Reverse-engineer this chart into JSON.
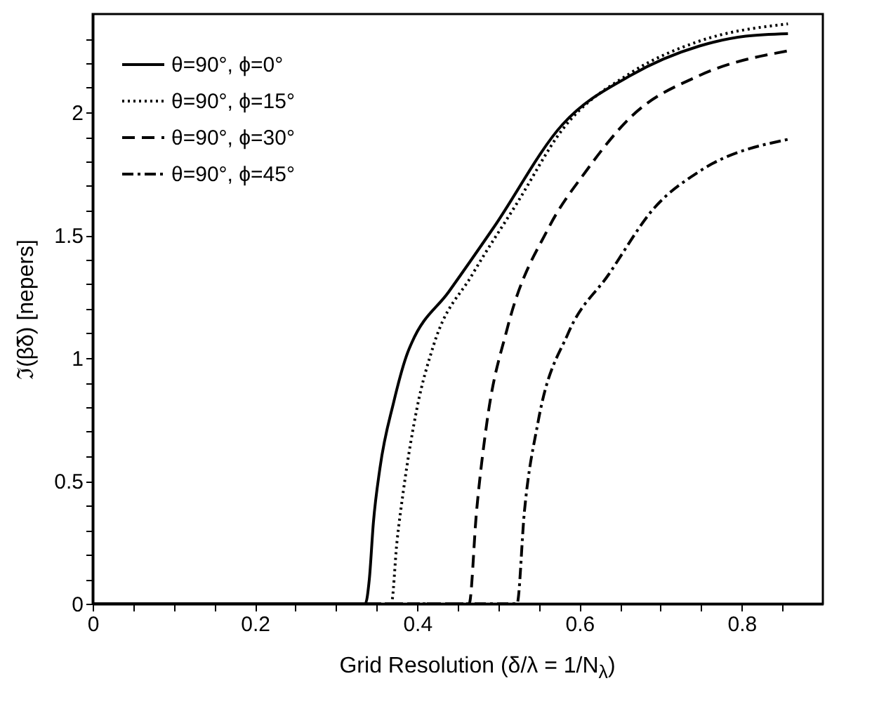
{
  "chart_data": {
    "type": "line",
    "xlabel": "Grid Resolution (δ/λ = 1/N$_{λ}$)",
    "ylabel": "ℑ(β̃δ) [nepers]",
    "xlim": [
      0,
      0.9
    ],
    "ylim": [
      0,
      2.4
    ],
    "xticks": [
      0,
      {
        "value": 0.05,
        "label": null
      },
      {
        "value": 0.1,
        "label": null
      },
      {
        "value": 0.15,
        "label": null
      },
      "0.2",
      {
        "value": 0.25,
        "label": null
      },
      {
        "value": 0.3,
        "label": null
      },
      {
        "value": 0.35,
        "label": null
      },
      0.4,
      {
        "value": 0.45,
        "label": null
      },
      {
        "value": 0.5,
        "label": null
      },
      {
        "value": 0.55,
        "label": null
      },
      0.6,
      {
        "value": 0.65,
        "label": null
      },
      {
        "value": 0.7,
        "label": null
      },
      {
        "value": 0.75,
        "label": null
      },
      0.8,
      {
        "value": 0.85,
        "label": null
      }
    ],
    "yticks": [
      0,
      {
        "value": 0.1,
        "label": null
      },
      {
        "value": 0.2,
        "label": null
      },
      {
        "value": 0.3,
        "label": null
      },
      {
        "value": 0.4,
        "label": null
      },
      0.5,
      {
        "value": 0.6,
        "label": null
      },
      {
        "value": 0.7,
        "label": null
      },
      {
        "value": 0.8,
        "label": null
      },
      {
        "value": 0.9,
        "label": null
      },
      1,
      {
        "value": 1.1,
        "label": null
      },
      {
        "value": 1.2,
        "label": null
      },
      {
        "value": 1.3,
        "label": null
      },
      {
        "value": 1.4,
        "label": null
      },
      1.5,
      {
        "value": 1.6,
        "label": null
      },
      {
        "value": 1.7,
        "label": null
      },
      {
        "value": 1.8,
        "label": null
      },
      {
        "value": 1.9,
        "label": null
      },
      2,
      {
        "value": 2.1,
        "label": null
      },
      {
        "value": 2.2,
        "label": null
      },
      {
        "value": 2.3,
        "label": null
      }
    ],
    "legend": "top left",
    "grid": false,
    "marker": "none",
    "series": [
      {
        "name": "θ=90°, ϕ=0°",
        "color": "#000000",
        "line_style": "solid",
        "x": [
          0,
          0.336,
          0.341,
          0.346,
          0.354,
          0.371,
          0.388,
          0.393,
          0.439,
          0.494,
          0.579,
          0.663,
          0.748,
          0.805,
          0.857
        ],
        "values": [
          0,
          0,
          0.1,
          0.33,
          0.55,
          0.82,
          1.02,
          1.06,
          1.27,
          1.53,
          1.95,
          2.15,
          2.27,
          2.31,
          2.32
        ]
      },
      {
        "name": "θ=90°, ϕ=15°",
        "color": "#000000",
        "line_style": "dotted",
        "x": [
          0,
          0.368,
          0.375,
          0.383,
          0.4,
          0.42,
          0.468,
          0.523,
          0.579,
          0.663,
          0.748,
          0.857
        ],
        "values": [
          0,
          0,
          0.25,
          0.46,
          0.8,
          1.05,
          1.34,
          1.63,
          1.93,
          2.16,
          2.29,
          2.36
        ]
      },
      {
        "name": "θ=90°, ϕ=30°",
        "color": "#000000",
        "line_style": "dashed",
        "x": [
          0,
          0.464,
          0.473,
          0.486,
          0.511,
          0.562,
          0.608,
          0.663,
          0.748,
          0.857
        ],
        "values": [
          0,
          0,
          0.37,
          0.74,
          1.12,
          1.53,
          1.76,
          1.98,
          2.15,
          2.25
        ]
      },
      {
        "name": "θ=90°, ϕ=45°",
        "color": "#000000",
        "line_style": "dashdot",
        "x": [
          0,
          0.523,
          0.532,
          0.549,
          0.586,
          0.636,
          0.692,
          0.748,
          0.857
        ],
        "values": [
          0,
          0,
          0.37,
          0.74,
          1.1,
          1.34,
          1.61,
          1.76,
          1.89
        ]
      }
    ]
  }
}
